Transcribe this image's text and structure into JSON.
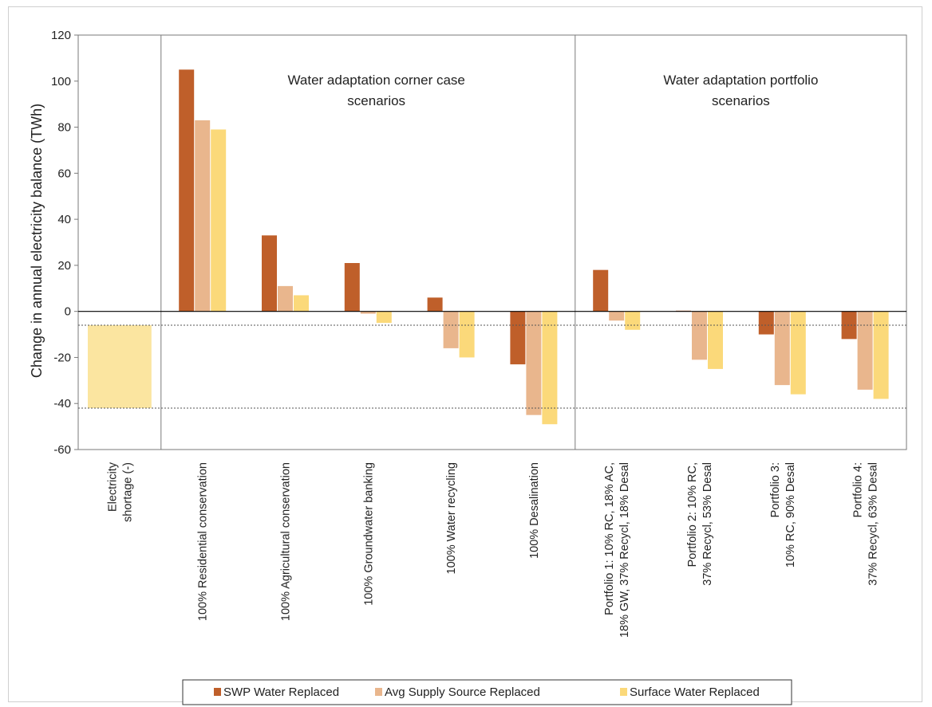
{
  "chart_data": {
    "type": "bar",
    "title": "",
    "xlabel": "",
    "ylabel": "Change in annual electricity balance (TWh)",
    "ylim": [
      -60,
      120
    ],
    "yticks": [
      120,
      100,
      80,
      60,
      40,
      20,
      0,
      -20,
      -40,
      -60
    ],
    "grid": false,
    "legend_position": "bottom",
    "categories": [
      [
        "Electricity",
        "shortage (-)"
      ],
      [
        "100% Residential conservation"
      ],
      [
        "100% Agricultural conservation"
      ],
      [
        "100% Groundwater banking"
      ],
      [
        "100% Water recycling"
      ],
      [
        "100% Desalination"
      ],
      [
        "Portfolio 1: 10% RC, 18% AC,",
        "18% GW, 37% Recycl, 18% Desal"
      ],
      [
        "Portfolio 2: 10% RC,",
        "37% Recycl, 53% Desal"
      ],
      [
        "Portfolio 3:",
        "10% RC, 90% Desal"
      ],
      [
        "Portfolio 4:",
        "37% Recycl, 63% Desal"
      ]
    ],
    "shortage_bar": {
      "from": -6,
      "to": -42,
      "color": "#fbe5a0"
    },
    "reference_lines": [
      -6,
      -42
    ],
    "series": [
      {
        "name": "SWP Water Replaced",
        "color": "#bf5f2a",
        "values": [
          null,
          105,
          33,
          21,
          6,
          -23,
          18,
          0.3,
          -10,
          -12
        ]
      },
      {
        "name": "Avg Supply Source Replaced",
        "color": "#e9b68d",
        "values": [
          null,
          83,
          11,
          -1,
          -16,
          -45,
          -4,
          -21,
          -32,
          -34
        ]
      },
      {
        "name": "Surface Water Replaced",
        "color": "#fbd97a",
        "values": [
          null,
          79,
          7,
          -5,
          -20,
          -49,
          -8,
          -25,
          -36,
          -38
        ]
      }
    ],
    "annotations": [
      {
        "lines": [
          "Water adaptation corner case",
          "scenarios"
        ]
      },
      {
        "lines": [
          "Water adaptation portfolio",
          "scenarios"
        ]
      }
    ]
  }
}
